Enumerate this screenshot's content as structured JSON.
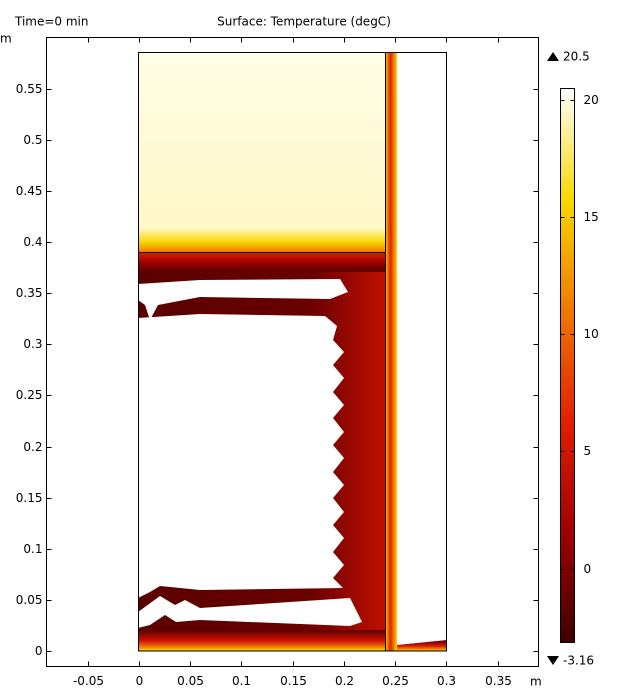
{
  "chart_data": {
    "type": "surface",
    "time_label": "Time=0 min",
    "title": "Surface: Temperature (degC)",
    "xlabel": "m",
    "ylabel": "m",
    "xlim": [
      -0.09,
      0.39
    ],
    "ylim": [
      -0.015,
      0.6
    ],
    "xticks": [
      -0.05,
      0,
      0.05,
      0.1,
      0.15,
      0.2,
      0.25,
      0.3,
      0.35
    ],
    "yticks": [
      0,
      0.05,
      0.1,
      0.15,
      0.2,
      0.25,
      0.3,
      0.35,
      0.4,
      0.45,
      0.5,
      0.55
    ],
    "colorbar": {
      "max": 20.5,
      "min": -3.16,
      "ticks": [
        0,
        5,
        10,
        15,
        20
      ],
      "colormap": [
        "#3c0000",
        "#a00000",
        "#e02000",
        "#f07800",
        "#f8d800",
        "#ffffff"
      ]
    }
  }
}
